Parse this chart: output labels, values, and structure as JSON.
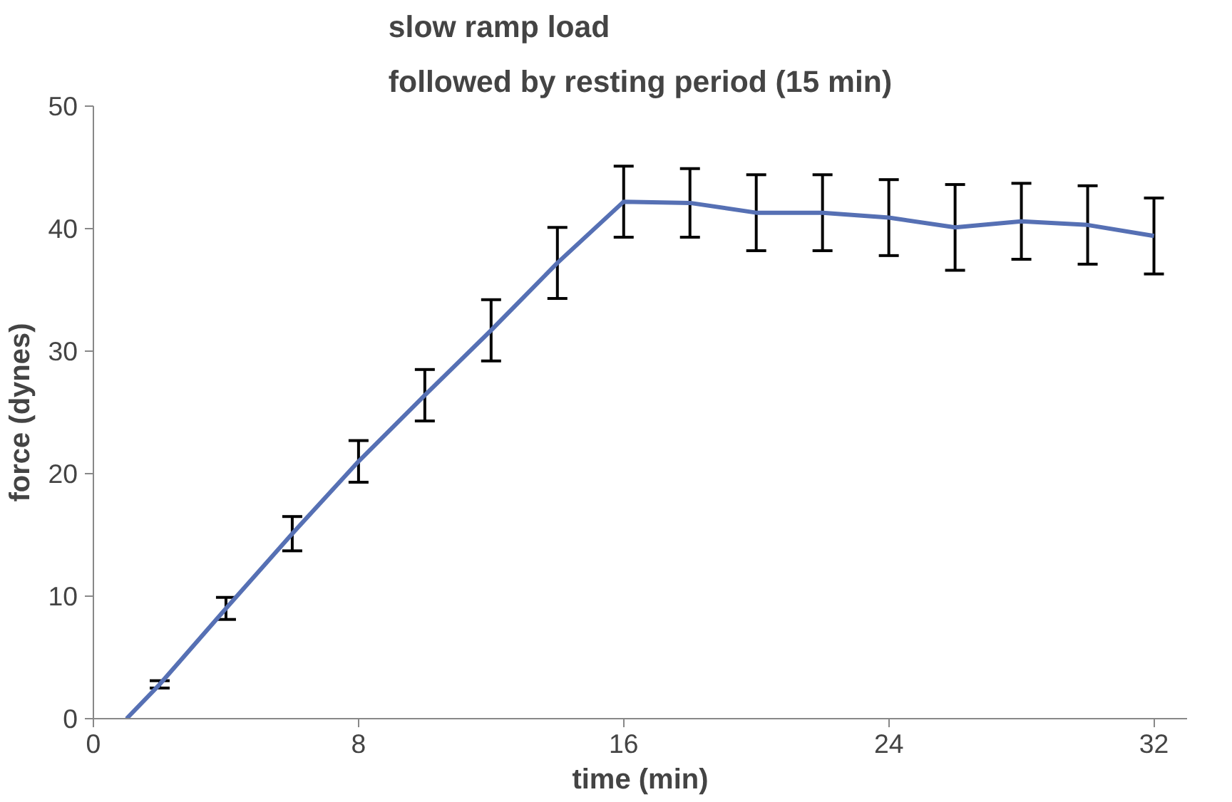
{
  "chart_data": {
    "type": "line",
    "title": "slow ramp load\nfollowed by resting period (15 min)",
    "xlabel": "time (min)",
    "ylabel": "force (dynes)",
    "x": [
      1,
      2,
      4,
      6,
      8,
      10,
      12,
      14,
      16,
      18,
      20,
      22,
      24,
      26,
      28,
      30,
      32
    ],
    "series": [
      {
        "color": "#5670b4",
        "values": [
          0,
          2.8,
          9.0,
          15.1,
          21.0,
          26.4,
          31.7,
          37.2,
          42.2,
          42.1,
          41.3,
          41.3,
          40.9,
          40.1,
          40.6,
          40.3,
          39.4
        ],
        "errors": [
          null,
          0.3,
          0.9,
          1.4,
          1.7,
          2.1,
          2.5,
          2.9,
          2.9,
          2.8,
          3.1,
          3.1,
          3.1,
          3.5,
          3.1,
          3.2,
          3.1
        ]
      }
    ],
    "xlim": [
      0,
      33
    ],
    "ylim": [
      0,
      50
    ],
    "xticks": [
      0,
      8,
      16,
      24,
      32
    ],
    "yticks": [
      0,
      10,
      20,
      30,
      40,
      50
    ],
    "grid": false,
    "marker": "none",
    "line_style": "solid"
  }
}
